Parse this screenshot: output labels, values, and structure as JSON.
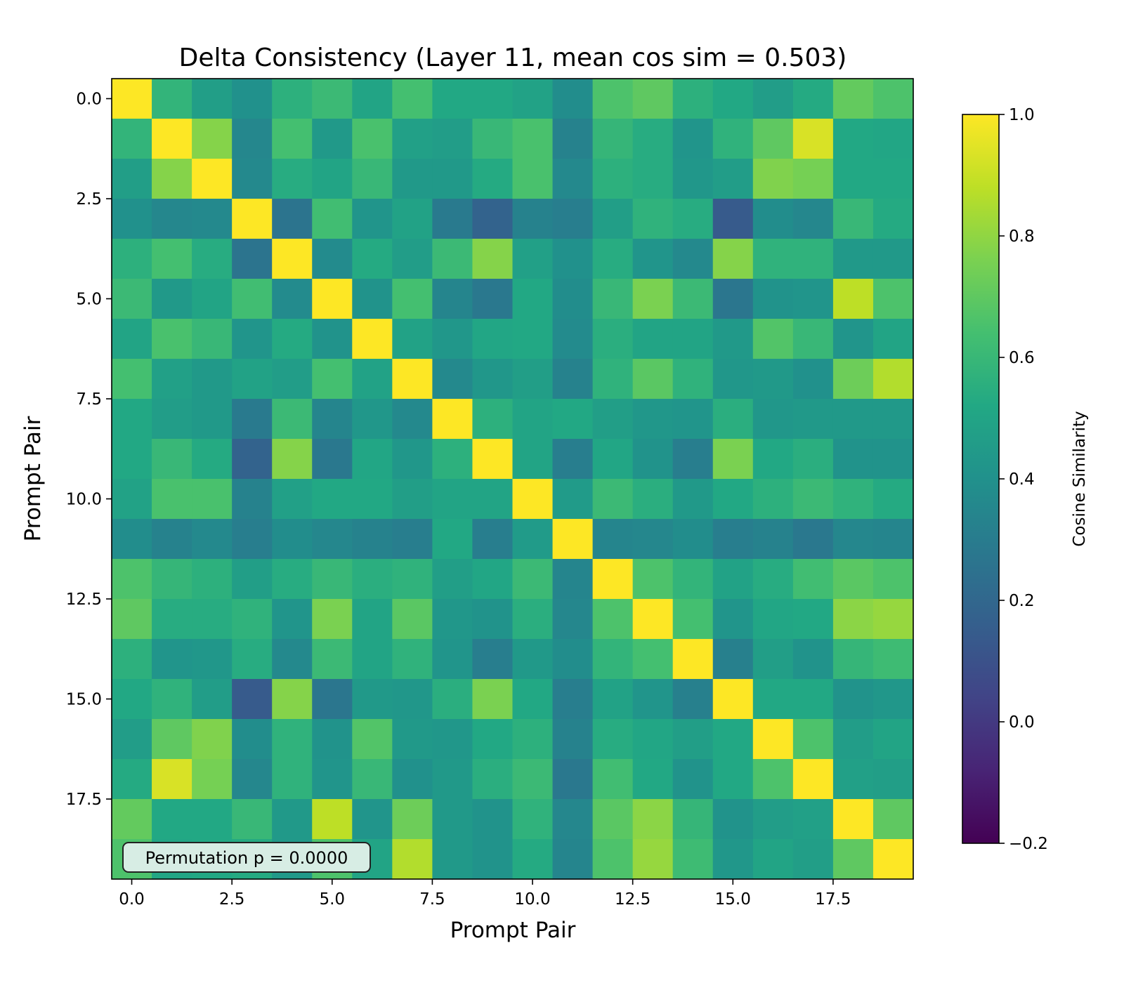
{
  "chart_data": {
    "type": "heatmap",
    "title": "Delta Consistency (Layer 11, mean cos sim = 0.503)",
    "xlabel": "Prompt Pair",
    "ylabel": "Prompt Pair",
    "rows": 20,
    "cols": 20,
    "xlim": [
      -0.5,
      19.5
    ],
    "ylim": [
      19.5,
      -0.5
    ],
    "x_ticks": [
      0.0,
      2.5,
      5.0,
      7.5,
      10.0,
      12.5,
      15.0,
      17.5
    ],
    "x_tick_labels": [
      "0.0",
      "2.5",
      "5.0",
      "7.5",
      "10.0",
      "12.5",
      "15.0",
      "17.5"
    ],
    "y_ticks": [
      0.0,
      2.5,
      5.0,
      7.5,
      10.0,
      12.5,
      15.0,
      17.5
    ],
    "y_tick_labels": [
      "0.0",
      "2.5",
      "5.0",
      "7.5",
      "10.0",
      "12.5",
      "15.0",
      "17.5"
    ],
    "colormap": "viridis",
    "colorbar": {
      "label": "Cosine Similarity",
      "vmin": -0.2,
      "vmax": 1.0,
      "ticks": [
        -0.2,
        0.0,
        0.2,
        0.4,
        0.6,
        0.8
      ],
      "tick_labels": [
        "−0.2",
        "0.0",
        "0.2",
        "0.4",
        "0.6",
        "0.8"
      ],
      "top_tick": 1.0,
      "top_tick_label": "1.0"
    },
    "annotation": "Permutation p = 0.0000",
    "annotation_placement": "bottom-left",
    "grid": false,
    "values": [
      [
        1.0,
        0.58,
        0.47,
        0.4,
        0.56,
        0.61,
        0.5,
        0.64,
        0.52,
        0.52,
        0.49,
        0.38,
        0.66,
        0.7,
        0.56,
        0.52,
        0.46,
        0.53,
        0.71,
        0.66
      ],
      [
        0.58,
        1.0,
        0.78,
        0.35,
        0.64,
        0.44,
        0.65,
        0.48,
        0.46,
        0.6,
        0.65,
        0.33,
        0.59,
        0.54,
        0.42,
        0.57,
        0.7,
        0.93,
        0.52,
        0.51
      ],
      [
        0.47,
        0.78,
        1.0,
        0.36,
        0.54,
        0.5,
        0.6,
        0.44,
        0.44,
        0.53,
        0.65,
        0.36,
        0.56,
        0.54,
        0.43,
        0.46,
        0.77,
        0.75,
        0.52,
        0.52
      ],
      [
        0.4,
        0.35,
        0.36,
        1.0,
        0.26,
        0.63,
        0.42,
        0.49,
        0.29,
        0.18,
        0.33,
        0.31,
        0.47,
        0.57,
        0.54,
        0.14,
        0.38,
        0.35,
        0.6,
        0.53
      ],
      [
        0.56,
        0.64,
        0.54,
        0.26,
        1.0,
        0.37,
        0.53,
        0.46,
        0.61,
        0.78,
        0.48,
        0.4,
        0.54,
        0.42,
        0.36,
        0.78,
        0.57,
        0.57,
        0.44,
        0.44
      ],
      [
        0.61,
        0.44,
        0.5,
        0.63,
        0.37,
        1.0,
        0.41,
        0.64,
        0.34,
        0.28,
        0.52,
        0.38,
        0.6,
        0.76,
        0.61,
        0.27,
        0.41,
        0.42,
        0.88,
        0.66
      ],
      [
        0.5,
        0.65,
        0.6,
        0.42,
        0.53,
        0.41,
        1.0,
        0.49,
        0.43,
        0.51,
        0.52,
        0.37,
        0.55,
        0.5,
        0.5,
        0.44,
        0.67,
        0.6,
        0.42,
        0.5
      ],
      [
        0.64,
        0.48,
        0.44,
        0.49,
        0.46,
        0.64,
        0.49,
        1.0,
        0.36,
        0.43,
        0.47,
        0.33,
        0.57,
        0.69,
        0.57,
        0.43,
        0.44,
        0.4,
        0.73,
        0.86
      ],
      [
        0.52,
        0.46,
        0.44,
        0.29,
        0.61,
        0.34,
        0.43,
        0.36,
        1.0,
        0.56,
        0.5,
        0.52,
        0.47,
        0.43,
        0.42,
        0.55,
        0.43,
        0.44,
        0.44,
        0.44
      ],
      [
        0.52,
        0.6,
        0.53,
        0.18,
        0.78,
        0.28,
        0.51,
        0.43,
        0.56,
        1.0,
        0.5,
        0.31,
        0.51,
        0.41,
        0.31,
        0.76,
        0.52,
        0.55,
        0.41,
        0.41
      ],
      [
        0.49,
        0.65,
        0.65,
        0.33,
        0.48,
        0.52,
        0.52,
        0.47,
        0.5,
        0.5,
        1.0,
        0.45,
        0.61,
        0.55,
        0.44,
        0.52,
        0.56,
        0.61,
        0.57,
        0.53
      ],
      [
        0.38,
        0.33,
        0.36,
        0.31,
        0.38,
        0.35,
        0.33,
        0.31,
        0.52,
        0.31,
        0.45,
        1.0,
        0.34,
        0.35,
        0.38,
        0.31,
        0.33,
        0.28,
        0.35,
        0.34
      ],
      [
        0.66,
        0.59,
        0.56,
        0.47,
        0.54,
        0.6,
        0.55,
        0.57,
        0.47,
        0.51,
        0.61,
        0.34,
        1.0,
        0.66,
        0.58,
        0.49,
        0.54,
        0.63,
        0.69,
        0.66
      ],
      [
        0.7,
        0.54,
        0.54,
        0.57,
        0.42,
        0.76,
        0.5,
        0.69,
        0.43,
        0.41,
        0.55,
        0.35,
        0.66,
        1.0,
        0.64,
        0.42,
        0.51,
        0.52,
        0.79,
        0.81
      ],
      [
        0.56,
        0.42,
        0.43,
        0.54,
        0.36,
        0.61,
        0.5,
        0.57,
        0.42,
        0.31,
        0.44,
        0.38,
        0.58,
        0.64,
        1.0,
        0.32,
        0.47,
        0.41,
        0.59,
        0.62
      ],
      [
        0.52,
        0.57,
        0.46,
        0.14,
        0.78,
        0.27,
        0.44,
        0.43,
        0.55,
        0.76,
        0.52,
        0.31,
        0.49,
        0.42,
        0.32,
        1.0,
        0.52,
        0.52,
        0.41,
        0.43
      ],
      [
        0.46,
        0.7,
        0.77,
        0.38,
        0.57,
        0.41,
        0.67,
        0.44,
        0.43,
        0.52,
        0.56,
        0.33,
        0.54,
        0.51,
        0.47,
        0.52,
        1.0,
        0.66,
        0.46,
        0.5
      ],
      [
        0.53,
        0.93,
        0.75,
        0.35,
        0.57,
        0.42,
        0.6,
        0.4,
        0.44,
        0.55,
        0.61,
        0.28,
        0.63,
        0.52,
        0.41,
        0.52,
        0.66,
        1.0,
        0.48,
        0.47
      ],
      [
        0.71,
        0.52,
        0.52,
        0.6,
        0.44,
        0.88,
        0.42,
        0.73,
        0.44,
        0.41,
        0.57,
        0.35,
        0.69,
        0.79,
        0.59,
        0.41,
        0.46,
        0.48,
        1.0,
        0.7
      ],
      [
        0.66,
        0.51,
        0.52,
        0.53,
        0.44,
        0.66,
        0.5,
        0.86,
        0.44,
        0.41,
        0.53,
        0.34,
        0.66,
        0.81,
        0.62,
        0.43,
        0.5,
        0.47,
        0.7,
        1.0
      ]
    ]
  }
}
